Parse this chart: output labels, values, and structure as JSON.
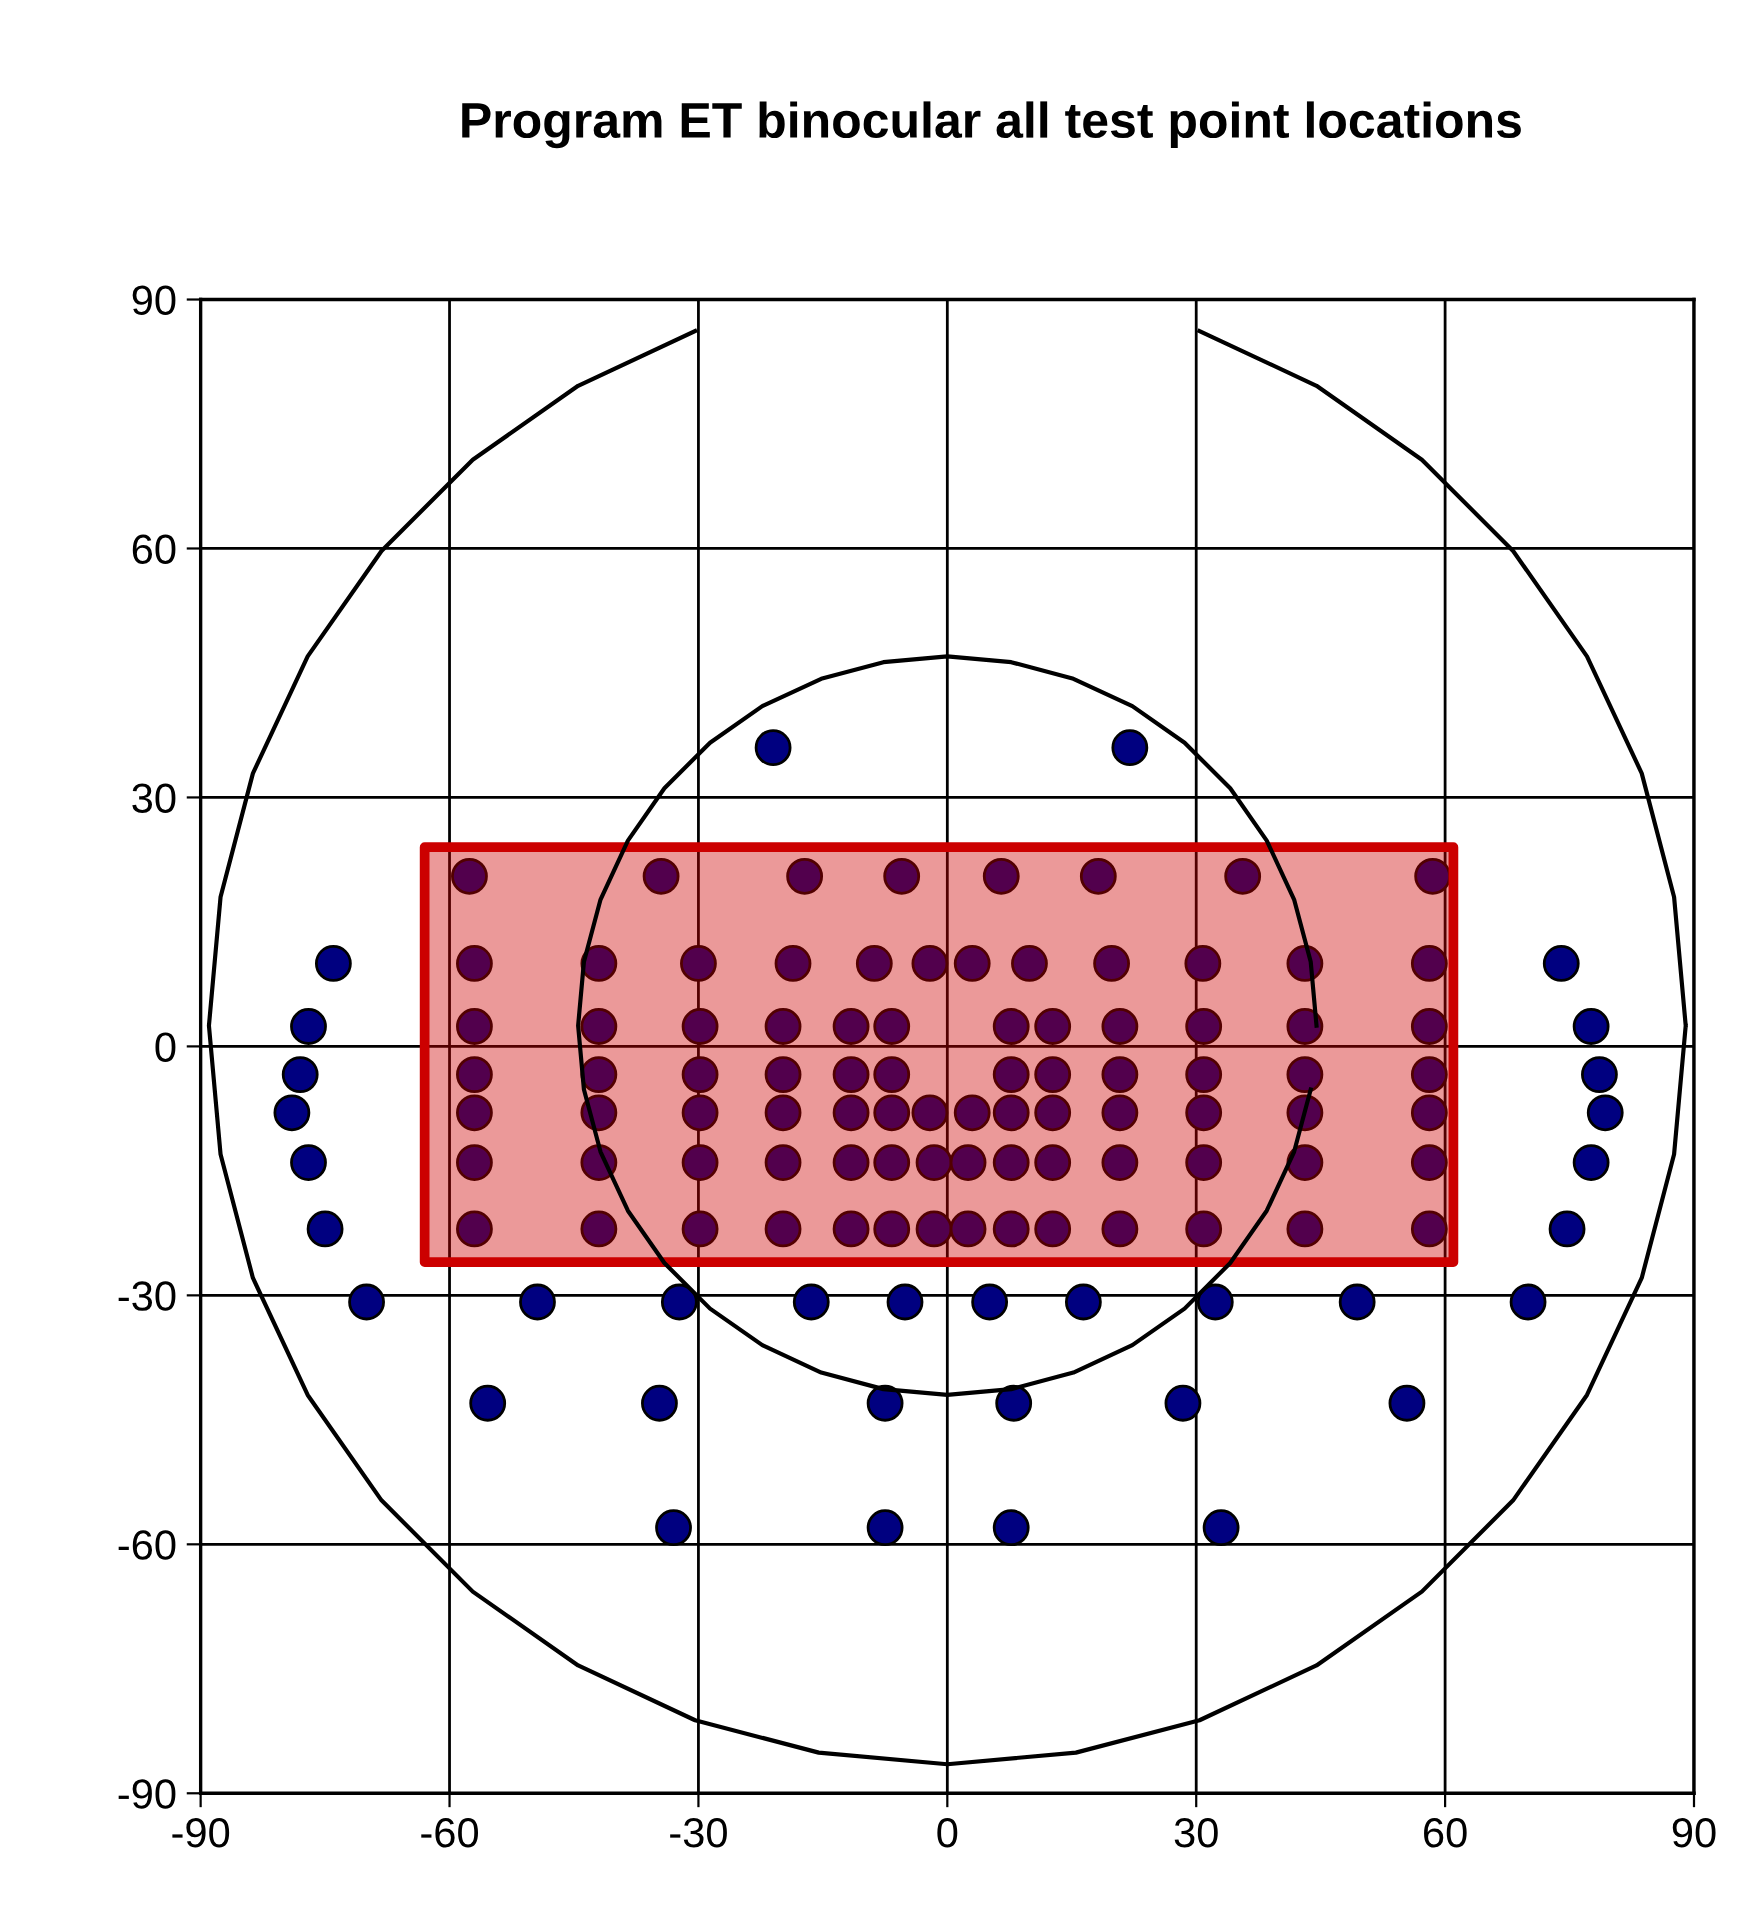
{
  "chart_data": {
    "type": "scatter",
    "title": "Program ET binocular all test point locations",
    "xlim": [
      -90,
      90
    ],
    "ylim": [
      -90,
      90
    ],
    "xticks": [
      -90,
      -60,
      -30,
      0,
      30,
      60,
      90
    ],
    "yticks": [
      -90,
      -60,
      -30,
      0,
      30,
      60,
      90
    ],
    "grid": true,
    "series": [
      {
        "type": "line",
        "color": "#000000",
        "marker": "none",
        "x": [
          89,
          87.6,
          83.7,
          77.1,
          68.2,
          57.2,
          44.5,
          30.4,
          15.5,
          0,
          -15.5,
          -30.4,
          -44.5,
          -57.2,
          -68.2,
          -77.1,
          -83.7,
          -87.6,
          -89,
          -87.6,
          -83.7,
          -77.1,
          -68.2,
          -57.2,
          -44.5,
          -30.4,
          -15.5,
          0,
          15.5,
          30.4,
          44.5,
          57.2,
          68.2,
          77.1,
          83.7,
          87.6,
          89
        ],
        "values": [
          2.5,
          18,
          32.9,
          47,
          59.7,
          70.7,
          79.6,
          86.2,
          null,
          null,
          null,
          86.2,
          79.6,
          70.7,
          59.7,
          47,
          32.9,
          18,
          2.5,
          -13,
          -27.9,
          -42,
          -54.7,
          -65.7,
          -74.6,
          -81.2,
          -85.1,
          -86.5,
          -85.1,
          -81.2,
          -74.6,
          -65.7,
          -54.7,
          -42,
          -27.9,
          -13,
          2.5
        ]
      },
      {
        "type": "line",
        "color": "#000000",
        "marker": "none",
        "x": [
          44.5,
          43.8,
          41.8,
          38.5,
          34.1,
          28.6,
          22.3,
          15.2,
          7.7,
          0,
          -7.7,
          -15.2,
          -22.3,
          -28.6,
          -34.1,
          -38.5,
          -41.8,
          -43.8,
          -44.5,
          -43.8,
          -41.8,
          -38.5,
          -34.1,
          -28.6,
          -22.3,
          -15.2,
          -7.7,
          0,
          7.7,
          15.2,
          22.3,
          28.6,
          34.1,
          38.5,
          41.8,
          43.8
        ],
        "values": [
          2.5,
          10.2,
          17.7,
          24.8,
          31.1,
          36.6,
          41,
          44.3,
          46.3,
          47,
          46.3,
          44.3,
          41,
          36.6,
          31.1,
          24.8,
          17.7,
          10.2,
          2.5,
          -5.2,
          -12.7,
          -19.8,
          -26.1,
          -31.6,
          -36,
          -39.3,
          -41.3,
          -42,
          -41.3,
          -39.3,
          -36,
          -31.6,
          -26.1,
          -19.8,
          -12.7,
          -5.2
        ]
      },
      {
        "color": "#000080",
        "marker": "circle",
        "x": [
          -21,
          22,
          -74,
          -77,
          -78,
          -79,
          -77,
          -75,
          74,
          77.6,
          78.6,
          79.3,
          77.6,
          74.7,
          -70,
          -49.4,
          -32.3,
          -16.4,
          -5.1,
          5.1,
          16.4,
          32.3,
          49.4,
          70,
          -55.4,
          -34.7,
          -7.5,
          8,
          28.4,
          55.4,
          -33,
          -7.5,
          7.7,
          33,
          -57.6,
          -34.5,
          -17.2,
          -5.5,
          6.5,
          18.2,
          35.6,
          58.5,
          -57,
          -42,
          -30,
          -18.6,
          -8.8,
          -2.1,
          3,
          9.9,
          19.8,
          30.8,
          43.1,
          58.1,
          -57,
          -42,
          -29.8,
          -19.8,
          -11.6,
          -6.7,
          7.7,
          12.7,
          20.8,
          30.9,
          43.1,
          58.1,
          -57,
          -42,
          -29.8,
          -19.8,
          -11.6,
          -6.7,
          7.7,
          12.7,
          20.8,
          30.9,
          43.1,
          58.1,
          -57,
          -42,
          -29.8,
          -19.8,
          -11.6,
          -6.7,
          -2.1,
          3,
          7.7,
          12.7,
          20.8,
          30.9,
          43.1,
          58.1,
          -57,
          -42,
          -29.8,
          -19.8,
          -11.6,
          -6.7,
          -1.6,
          2.5,
          7.7,
          12.7,
          20.8,
          30.9,
          43.1,
          58.1,
          -57,
          -42,
          -29.8,
          -19.8,
          -11.6,
          -6.7,
          -1.6,
          2.5,
          7.7,
          12.7,
          20.8,
          30.9,
          43.1,
          58.1
        ],
        "values": [
          36,
          36,
          10,
          2.4,
          -3.4,
          -8,
          -14,
          -22,
          10,
          2.4,
          -3.4,
          -8,
          -14,
          -22,
          -30.8,
          -30.8,
          -30.8,
          -30.8,
          -30.8,
          -30.8,
          -30.8,
          -30.8,
          -30.8,
          -30.8,
          -43,
          -43,
          -43,
          -43,
          -43,
          -43,
          -58,
          -58,
          -58,
          -58,
          20.5,
          20.5,
          20.5,
          20.5,
          20.5,
          20.5,
          20.5,
          20.5,
          10,
          10,
          10,
          10,
          10,
          10,
          10,
          10,
          10,
          10,
          10,
          10,
          2.4,
          2.4,
          2.4,
          2.4,
          2.4,
          2.4,
          2.4,
          2.4,
          2.4,
          2.4,
          2.4,
          2.4,
          -3.4,
          -3.4,
          -3.4,
          -3.4,
          -3.4,
          -3.4,
          -3.4,
          -3.4,
          -3.4,
          -3.4,
          -3.4,
          -3.4,
          -8,
          -8,
          -8,
          -8,
          -8,
          -8,
          -8,
          -8,
          -8,
          -8,
          -8,
          -8,
          -8,
          -8,
          -14,
          -14,
          -14,
          -14,
          -14,
          -14,
          -14,
          -14,
          -14,
          -14,
          -14,
          -14,
          -14,
          -14,
          -22,
          -22,
          -22,
          -22,
          -22,
          -22,
          -22,
          -22,
          -22,
          -22,
          -22,
          -22,
          -22,
          -22
        ]
      },
      {
        "type": "area",
        "color": "#cc0000",
        "x": [
          -63,
          61,
          61,
          -63
        ],
        "values": [
          24,
          24,
          -26,
          -26
        ]
      }
    ]
  }
}
